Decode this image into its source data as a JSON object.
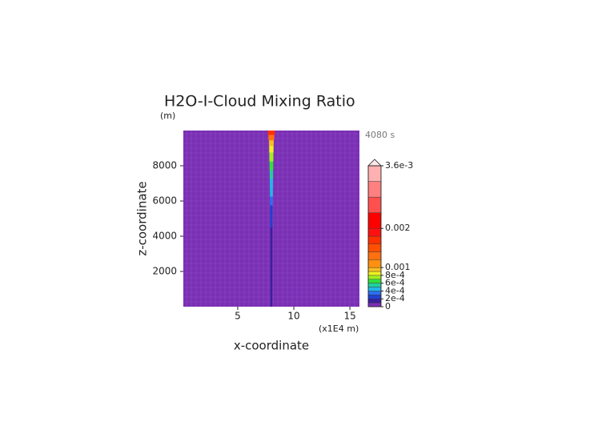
{
  "chart_data": {
    "type": "contour",
    "title": "H2O-I-Cloud Mixing Ratio",
    "y_unit": "(m)",
    "time_label": "4080 s",
    "x_unit": "(x1E4 m)",
    "xlabel": "x-coordinate",
    "ylabel": "z-coordinate",
    "xlim": [
      0.15,
      15.85
    ],
    "xticks": [
      5,
      10,
      15
    ],
    "ylim": [
      0,
      10000
    ],
    "yticks": [
      2000,
      4000,
      6000,
      8000
    ],
    "plume": {
      "x": 8,
      "z": [
        300,
        1000,
        2000,
        3000,
        4000,
        5000,
        5500,
        6000,
        6500,
        7000,
        7500,
        8000,
        8500,
        9000,
        9300,
        9600,
        9900
      ],
      "values": [
        0.00012,
        0.00015,
        0.00014,
        0.00016,
        0.00018,
        0.00022,
        0.00028,
        0.00034,
        0.00042,
        0.00048,
        0.00055,
        0.00065,
        0.00075,
        0.00085,
        0.00095,
        0.0013,
        0.0017
      ]
    },
    "colorbar": {
      "lim": [
        0,
        0.0036
      ],
      "levels": [
        0,
        0.0001,
        0.0002,
        0.0003,
        0.0004,
        0.0005,
        0.0006,
        0.0007,
        0.0008,
        0.0009,
        0.001,
        0.0012,
        0.0014,
        0.0016,
        0.0018,
        0.002,
        0.0024,
        0.0028,
        0.0032,
        0.0036
      ],
      "colors": [
        "#7a2fb5",
        "#3a1fa0",
        "#2040d0",
        "#2a70f0",
        "#20b8e8",
        "#20d0a0",
        "#30e040",
        "#a0f020",
        "#f0f020",
        "#f8c020",
        "#ff9010",
        "#ff7010",
        "#ff5000",
        "#ff3000",
        "#ff1010",
        "#ff0000",
        "#ff5050",
        "#ff8080",
        "#ffb0b0"
      ],
      "extend_color": "#ffe8e8",
      "ticks": [
        0,
        {
          "value": 0.0002,
          "label": "2e-4"
        },
        {
          "value": 0.0004,
          "label": "4e-4"
        },
        {
          "value": 0.0006,
          "label": "6e-4"
        },
        {
          "value": 0.0008,
          "label": "8e-4"
        },
        0.001,
        0.002,
        {
          "value": 0.0036,
          "label": "3.6e-3"
        }
      ]
    }
  }
}
